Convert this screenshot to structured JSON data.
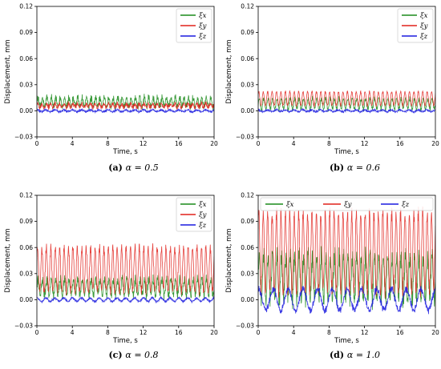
{
  "chart_data": [
    {
      "type": "line",
      "caption_letter": "(a)",
      "caption_text": "α = 0.5",
      "xlabel": "Time, s",
      "ylabel": "Displacement, mm",
      "xlim": [
        0,
        20
      ],
      "ylim": [
        -0.03,
        0.12
      ],
      "xticks": [
        "0",
        "4",
        "8",
        "12",
        "16",
        "20"
      ],
      "yticks": [
        "−0.03",
        "0.00",
        "0.03",
        "0.06",
        "0.09",
        "0.12"
      ],
      "legend_position": "top-right",
      "legend_layout": "column",
      "series": [
        {
          "name": "ξx",
          "color": "#1a8a1a",
          "mean": 0.01,
          "amp": 0.005,
          "freq": 2.0,
          "noise": 0.003
        },
        {
          "name": "ξy",
          "color": "#e0201a",
          "mean": 0.006,
          "amp": 0.002,
          "freq": 2.0,
          "noise": 0.002
        },
        {
          "name": "ξz",
          "color": "#1a1adf",
          "mean": 0.0,
          "amp": 0.001,
          "freq": 1.0,
          "noise": 0.001
        }
      ]
    },
    {
      "type": "line",
      "caption_letter": "(b)",
      "caption_text": "α = 0.6",
      "xlabel": "Time, s",
      "ylabel": "Displacement, mm",
      "xlim": [
        0,
        20
      ],
      "ylim": [
        -0.03,
        0.12
      ],
      "xticks": [
        "0",
        "4",
        "8",
        "12",
        "16",
        "20"
      ],
      "yticks": [
        "−0.03",
        "0.00",
        "0.03",
        "0.06",
        "0.09",
        "0.12"
      ],
      "legend_position": "top-right",
      "legend_layout": "column",
      "series": [
        {
          "name": "ξx",
          "color": "#1a8a1a",
          "mean": 0.008,
          "amp": 0.006,
          "freq": 2.0,
          "noise": 0.002
        },
        {
          "name": "ξy",
          "color": "#e0201a",
          "mean": 0.014,
          "amp": 0.008,
          "freq": 2.0,
          "noise": 0.001
        },
        {
          "name": "ξz",
          "color": "#1a1adf",
          "mean": 0.0,
          "amp": 0.001,
          "freq": 1.0,
          "noise": 0.001
        }
      ]
    },
    {
      "type": "line",
      "caption_letter": "(c)",
      "caption_text": "α = 0.8",
      "xlabel": "Time, s",
      "ylabel": "Displacement, mm",
      "xlim": [
        0,
        20
      ],
      "ylim": [
        -0.03,
        0.12
      ],
      "xticks": [
        "0",
        "4",
        "8",
        "12",
        "16",
        "20"
      ],
      "yticks": [
        "−0.03",
        "0.00",
        "0.03",
        "0.06",
        "0.09",
        "0.12"
      ],
      "legend_position": "top-right",
      "legend_layout": "column",
      "series": [
        {
          "name": "ξx",
          "color": "#1a8a1a",
          "mean": 0.014,
          "amp": 0.009,
          "freq": 2.0,
          "noise": 0.004
        },
        {
          "name": "ξy",
          "color": "#e0201a",
          "mean": 0.035,
          "amp": 0.025,
          "freq": 2.0,
          "noise": 0.004
        },
        {
          "name": "ξz",
          "color": "#1a1adf",
          "mean": 0.0,
          "amp": 0.002,
          "freq": 1.0,
          "noise": 0.001
        }
      ]
    },
    {
      "type": "line",
      "caption_letter": "(d)",
      "caption_text": "α = 1.0",
      "xlabel": "Time, s",
      "ylabel": "Displacement, mm",
      "xlim": [
        0,
        20
      ],
      "ylim": [
        -0.03,
        0.12
      ],
      "xticks": [
        "0",
        "4",
        "8",
        "12",
        "16",
        "20"
      ],
      "yticks": [
        "−0.03",
        "0.00",
        "0.03",
        "0.06",
        "0.09",
        "0.12"
      ],
      "legend_position": "top",
      "legend_layout": "row",
      "series": [
        {
          "name": "ξx",
          "color": "#1a8a1a",
          "mean": 0.025,
          "amp": 0.025,
          "freq": 2.0,
          "noise": 0.008
        },
        {
          "name": "ξy",
          "color": "#e0201a",
          "mean": 0.055,
          "amp": 0.045,
          "freq": 2.0,
          "noise": 0.006
        },
        {
          "name": "ξz",
          "color": "#1a1adf",
          "mean": 0.0,
          "amp": 0.012,
          "freq": 0.6,
          "noise": 0.003
        }
      ]
    }
  ]
}
